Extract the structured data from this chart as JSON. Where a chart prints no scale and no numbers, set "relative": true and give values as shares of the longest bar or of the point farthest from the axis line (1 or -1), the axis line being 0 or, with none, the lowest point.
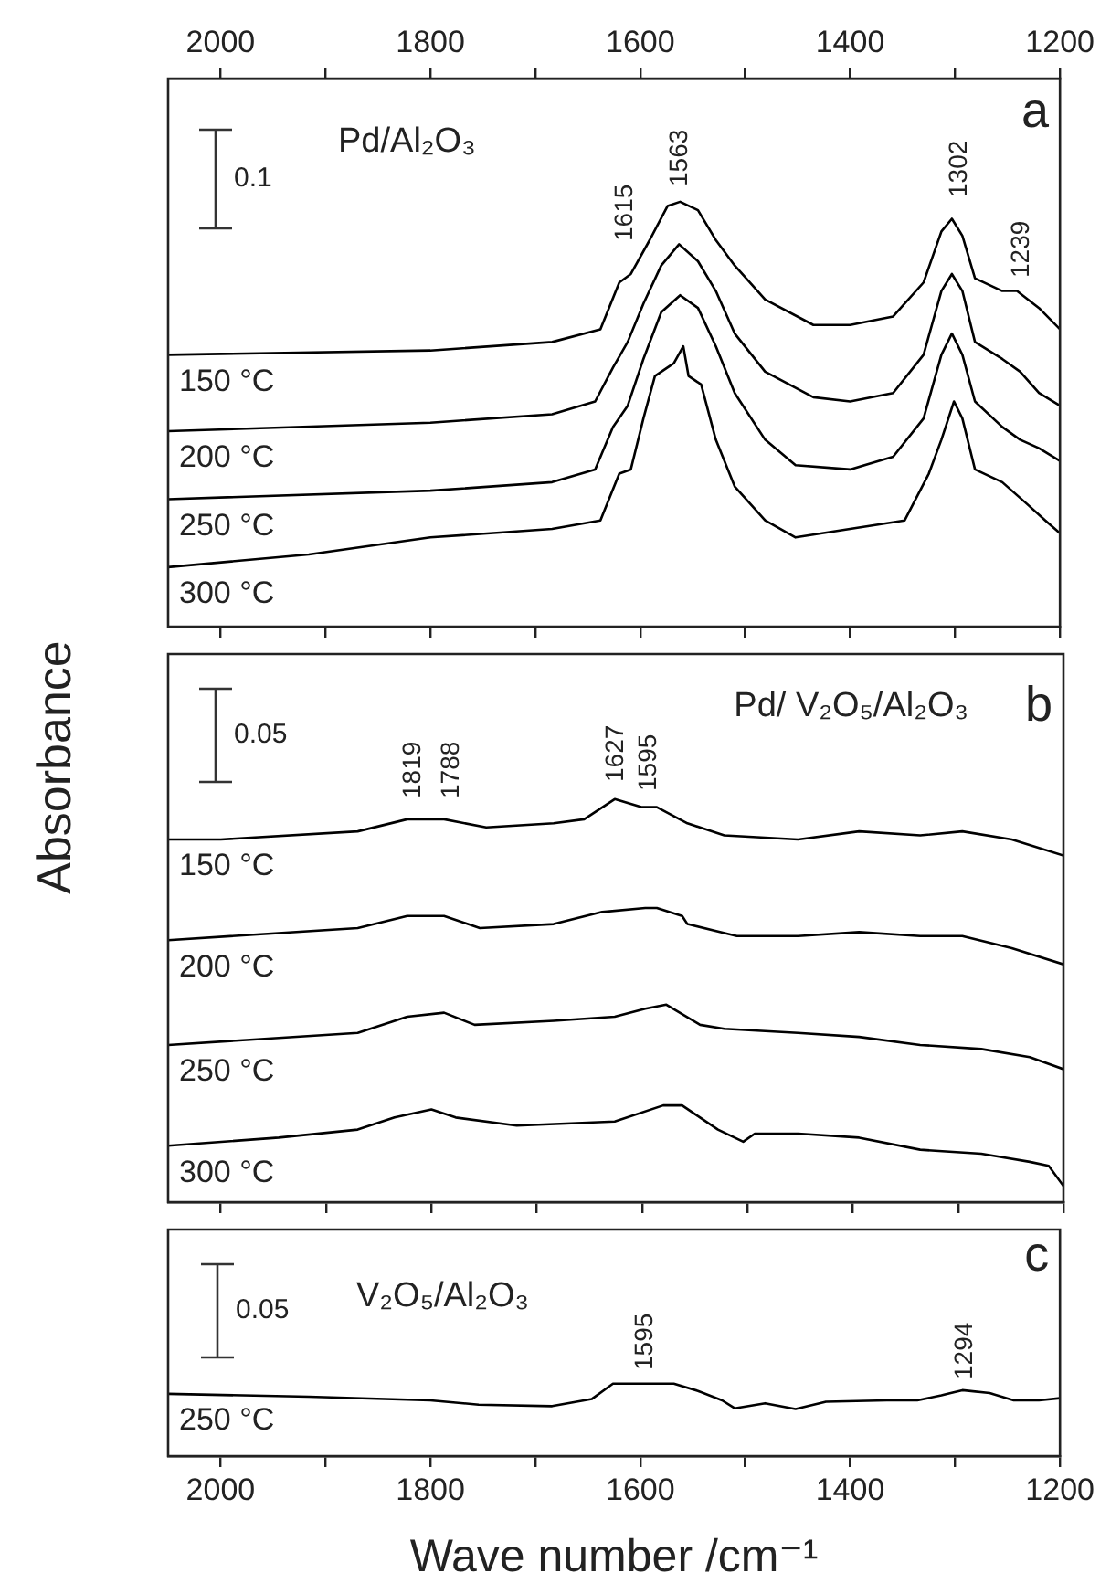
{
  "chart_data": [
    {
      "type": "line",
      "title": "Pd/Al₂O₃",
      "relative": true,
      "tick_labels": false,
      "xlim": [
        2050,
        1200
      ],
      "xticks": [
        2000,
        {
          "value": 1900,
          "label": null
        },
        1800,
        {
          "value": 1700,
          "label": null
        },
        1600,
        {
          "value": 1500,
          "label": null
        },
        1400,
        {
          "value": 1300,
          "label": null
        },
        1200
      ],
      "x2lim": [
        2050,
        1200
      ],
      "x2ticks": [
        2000,
        {
          "value": 1900,
          "label": null
        },
        1800,
        {
          "value": 1700,
          "label": null
        },
        1600,
        {
          "value": 1500,
          "label": null
        },
        1400,
        {
          "value": 1300,
          "label": null
        },
        1200
      ],
      "annotations": [
        "a",
        "0.1",
        "1615",
        "1563",
        "1302",
        "1239"
      ],
      "series": [
        {
          "name": "150 °C",
          "color": "#000000",
          "x": [
            2050,
            1800,
            1684,
            1638,
            1620,
            1609,
            1591,
            1574,
            1562,
            1545,
            1528,
            1510,
            1481,
            1435,
            1400,
            1359,
            1330,
            1313,
            1303,
            1293,
            1281,
            1255,
            1241,
            1220,
            1200
          ],
          "values": [
            0.64,
            0.65,
            0.67,
            0.7,
            0.81,
            0.83,
            0.91,
            0.99,
            1.0,
            0.98,
            0.91,
            0.85,
            0.77,
            0.71,
            0.71,
            0.73,
            0.81,
            0.93,
            0.96,
            0.92,
            0.82,
            0.79,
            0.79,
            0.75,
            0.7
          ]
        },
        {
          "name": "200 °C",
          "color": "#000000",
          "x": [
            2050,
            1800,
            1684,
            1643,
            1626,
            1612,
            1597,
            1580,
            1563,
            1545,
            1528,
            1510,
            1481,
            1435,
            1400,
            1359,
            1330,
            1313,
            1303,
            1293,
            1281,
            1255,
            1238,
            1220,
            1200
          ],
          "values": [
            0.46,
            0.48,
            0.5,
            0.53,
            0.61,
            0.67,
            0.76,
            0.85,
            0.9,
            0.86,
            0.79,
            0.69,
            0.6,
            0.54,
            0.53,
            0.55,
            0.64,
            0.79,
            0.83,
            0.79,
            0.67,
            0.63,
            0.6,
            0.55,
            0.52
          ]
        },
        {
          "name": "250 °C",
          "color": "#000000",
          "x": [
            2050,
            1800,
            1684,
            1643,
            1626,
            1612,
            1597,
            1580,
            1562,
            1545,
            1528,
            1510,
            1481,
            1452,
            1400,
            1359,
            1330,
            1313,
            1303,
            1293,
            1281,
            1255,
            1238,
            1220,
            1200
          ],
          "values": [
            0.3,
            0.32,
            0.34,
            0.37,
            0.47,
            0.52,
            0.63,
            0.74,
            0.78,
            0.75,
            0.66,
            0.55,
            0.44,
            0.38,
            0.37,
            0.4,
            0.49,
            0.64,
            0.69,
            0.64,
            0.53,
            0.47,
            0.44,
            0.42,
            0.39
          ]
        },
        {
          "name": "300 °C",
          "color": "#000000",
          "x": [
            2050,
            1916,
            1800,
            1684,
            1638,
            1620,
            1609,
            1597,
            1586,
            1568,
            1559,
            1554,
            1542,
            1528,
            1510,
            1481,
            1452,
            1400,
            1348,
            1325,
            1313,
            1301,
            1293,
            1281,
            1255,
            1232,
            1214,
            1200
          ],
          "values": [
            0.14,
            0.17,
            0.21,
            0.23,
            0.25,
            0.36,
            0.37,
            0.49,
            0.59,
            0.62,
            0.66,
            0.59,
            0.57,
            0.44,
            0.33,
            0.25,
            0.21,
            0.23,
            0.25,
            0.36,
            0.44,
            0.53,
            0.49,
            0.37,
            0.34,
            0.29,
            0.25,
            0.22
          ]
        }
      ]
    },
    {
      "type": "line",
      "title": "Pd/ V₂O₅/Al₂O₃",
      "ylabel": "Absorbance",
      "relative": true,
      "tick_labels": false,
      "xlim": [
        2050,
        1200
      ],
      "xticks": [
        2000,
        {
          "value": 1900,
          "label": null
        },
        1800,
        {
          "value": 1700,
          "label": null
        },
        1600,
        {
          "value": 1500,
          "label": null
        },
        1400,
        {
          "value": 1300,
          "label": null
        },
        1200
      ],
      "annotations": [
        "b",
        "0.05",
        "1819",
        "1788",
        "1627",
        "1595"
      ],
      "series": [
        {
          "name": "150 °C",
          "color": "#000000",
          "x": [
            2050,
            2000,
            1870,
            1823,
            1788,
            1748,
            1684,
            1655,
            1626,
            1600,
            1586,
            1557,
            1522,
            1452,
            1394,
            1336,
            1296,
            1249,
            1200
          ],
          "values": [
            0.9,
            0.9,
            0.92,
            0.95,
            0.95,
            0.93,
            0.94,
            0.95,
            1.0,
            0.98,
            0.98,
            0.94,
            0.91,
            0.9,
            0.92,
            0.91,
            0.92,
            0.9,
            0.86
          ]
        },
        {
          "name": "200 °C",
          "color": "#000000",
          "x": [
            2050,
            1870,
            1823,
            1788,
            1754,
            1684,
            1638,
            1597,
            1586,
            1562,
            1557,
            1510,
            1452,
            1394,
            1336,
            1296,
            1249,
            1200
          ],
          "values": [
            0.65,
            0.68,
            0.71,
            0.71,
            0.68,
            0.69,
            0.72,
            0.73,
            0.73,
            0.71,
            0.69,
            0.66,
            0.66,
            0.67,
            0.66,
            0.66,
            0.63,
            0.59
          ]
        },
        {
          "name": "250 °C",
          "color": "#000000",
          "x": [
            2050,
            1870,
            1823,
            1788,
            1759,
            1684,
            1626,
            1597,
            1577,
            1545,
            1522,
            1452,
            1394,
            1336,
            1278,
            1232,
            1200
          ],
          "values": [
            0.39,
            0.42,
            0.46,
            0.47,
            0.44,
            0.45,
            0.46,
            0.48,
            0.49,
            0.44,
            0.43,
            0.42,
            0.41,
            0.39,
            0.38,
            0.36,
            0.33
          ]
        },
        {
          "name": "300 °C",
          "color": "#000000",
          "x": [
            2050,
            1945,
            1870,
            1835,
            1800,
            1777,
            1719,
            1626,
            1580,
            1562,
            1545,
            1528,
            1504,
            1493,
            1452,
            1394,
            1336,
            1278,
            1232,
            1214,
            1200
          ],
          "values": [
            0.14,
            0.16,
            0.18,
            0.21,
            0.23,
            0.21,
            0.19,
            0.2,
            0.24,
            0.24,
            0.21,
            0.18,
            0.15,
            0.17,
            0.17,
            0.16,
            0.13,
            0.12,
            0.1,
            0.09,
            0.04
          ]
        }
      ]
    },
    {
      "type": "line",
      "title": "V₂O₅/Al₂O₃",
      "xlabel": "Wave number /cm⁻¹",
      "relative": true,
      "xlim": [
        2050,
        1200
      ],
      "xticks": [
        2000,
        {
          "value": 1900,
          "label": null
        },
        1800,
        {
          "value": 1700,
          "label": null
        },
        1600,
        {
          "value": 1500,
          "label": null
        },
        1400,
        {
          "value": 1300,
          "label": null
        },
        1200
      ],
      "annotations": [
        "c",
        "0.05",
        "1595",
        "1294"
      ],
      "series": [
        {
          "name": "250 °C",
          "color": "#000000",
          "x": [
            2050,
            1916,
            1800,
            1754,
            1684,
            1646,
            1626,
            1568,
            1545,
            1522,
            1510,
            1481,
            1452,
            1423,
            1365,
            1336,
            1313,
            1293,
            1267,
            1244,
            1220,
            1200
          ],
          "values": [
            0.86,
            0.82,
            0.77,
            0.71,
            0.69,
            0.79,
            1.0,
            1.0,
            0.9,
            0.77,
            0.66,
            0.73,
            0.65,
            0.75,
            0.77,
            0.77,
            0.84,
            0.91,
            0.87,
            0.77,
            0.77,
            0.8
          ]
        }
      ]
    }
  ]
}
